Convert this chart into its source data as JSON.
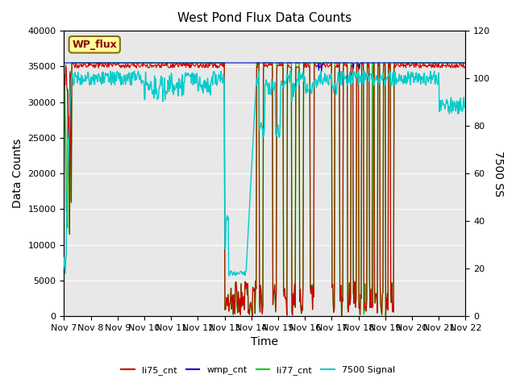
{
  "title": "West Pond Flux Data Counts",
  "xlabel": "Time",
  "ylabel_left": "Data Counts",
  "ylabel_right": "7500 SS",
  "xlim_days": [
    0,
    15
  ],
  "ylim_left": [
    0,
    40000
  ],
  "ylim_right": [
    0,
    120
  ],
  "x_tick_labels": [
    "Nov 7",
    "Nov 8",
    "Nov 9",
    "Nov 10",
    "Nov 11",
    "Nov 12",
    "Nov 13",
    "Nov 14",
    "Nov 15",
    "Nov 16",
    "Nov 17",
    "Nov 18",
    "Nov 19",
    "Nov 20",
    "Nov 21",
    "Nov 22"
  ],
  "bg_color": "#e8e8e8",
  "legend_label": "WP_flux",
  "legend_box_color": "#ffff99",
  "legend_box_edge": "#8b6914",
  "series_colors": {
    "li75_cnt": "#cc0000",
    "wmp_cnt": "#0000cc",
    "li77_cnt": "#00cc00",
    "7500_signal": "#00cccc"
  }
}
